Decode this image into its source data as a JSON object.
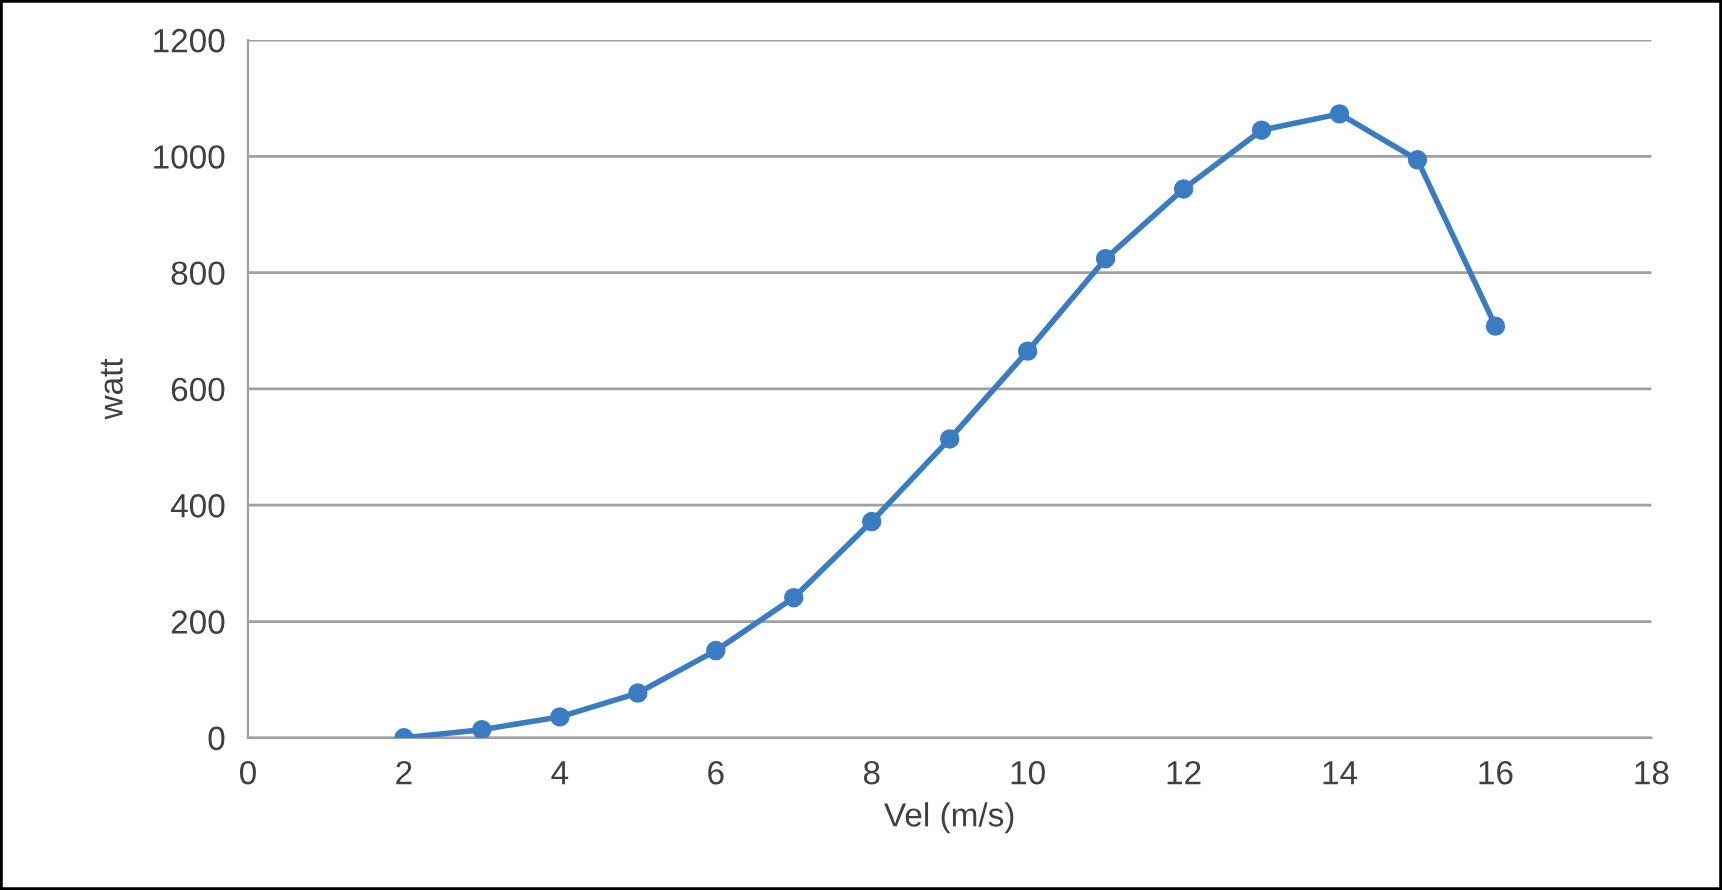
{
  "chart_data": {
    "type": "line",
    "xlabel": "Vel (m/s)",
    "ylabel": "watt",
    "x": [
      2,
      3,
      4,
      5,
      6,
      7,
      8,
      9,
      10,
      11,
      12,
      13,
      14,
      15,
      16
    ],
    "series": [
      {
        "color": "#3a7cc2",
        "values": [
          0,
          14,
          36,
          77,
          150,
          241,
          372,
          514,
          665,
          824,
          944,
          1045,
          1073,
          994,
          708
        ]
      }
    ],
    "xlim": [
      0,
      18
    ],
    "xticks": [
      0,
      2,
      4,
      6,
      8,
      10,
      12,
      14,
      16,
      18
    ],
    "ylim": [
      0,
      1200
    ],
    "yticks": [
      0,
      200,
      400,
      600,
      800,
      1000,
      1200
    ],
    "grid": "y",
    "marker": "circle",
    "line_style": "solid"
  }
}
